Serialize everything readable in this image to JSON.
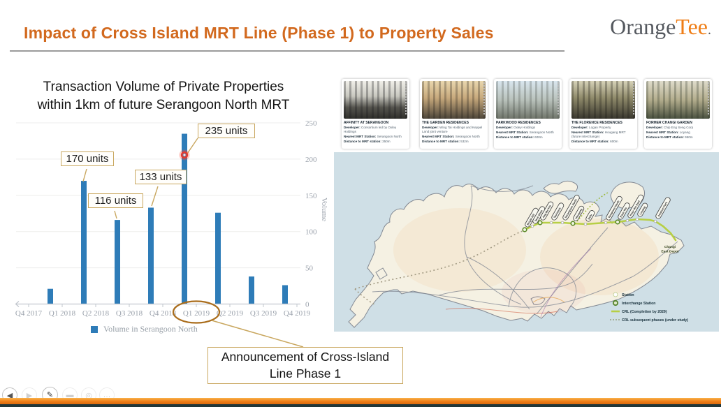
{
  "slide": {
    "title": "Impact of Cross Island MRT Line (Phase 1) to Property Sales",
    "logo_part1": "Orange",
    "logo_part2": "Tee",
    "logo_suffix": "."
  },
  "colors": {
    "title_orange": "#d2691e",
    "bar_blue": "#2e7cb8",
    "callout_border": "#c9a75f",
    "crl_green": "#b7cf45",
    "highlight_red": "#e8392c",
    "sea_blue": "#cfdfe6",
    "land_cream": "#f5f1e3",
    "bottom_bar_orange": "#ee7d17",
    "bottom_bar_dark": "#203639"
  },
  "chart": {
    "title_line1": "Transaction Volume of Private Properties",
    "title_line2": "within 1km of future Serangoon North MRT",
    "ylabel": "Volume",
    "legend_label": "Volume in Serangoon North"
  },
  "chart_data": {
    "type": "bar",
    "title": "Transaction Volume of Private Properties within 1km of future Serangoon North MRT",
    "x_tick_labels": [
      "Q4 2017",
      "Q1 2018",
      "Q2 2018",
      "Q3 2018",
      "Q4 2018",
      "Q1 2019",
      "Q2 2019",
      "Q3 2019",
      "Q4 2019"
    ],
    "note": "8 thin bars are plotted between consecutive quarter tick labels",
    "values": [
      21,
      170,
      116,
      133,
      235,
      126,
      38,
      26
    ],
    "labeled_points": {
      "170 units": 170,
      "116 units": 116,
      "133 units": 133,
      "235 units": 235
    },
    "y_ticks": [
      0,
      50,
      100,
      150,
      200,
      250
    ],
    "ylim": [
      0,
      250
    ],
    "ylabel": "Volume",
    "legend": [
      "Volume in Serangoon North"
    ],
    "legend_position": "bottom",
    "highlight": {
      "near_label": "Q1 2019",
      "value": 235,
      "marker": "red dot on tallest bar"
    },
    "circled_tick": "Q1 2019"
  },
  "callouts": [
    {
      "text": "170 units"
    },
    {
      "text": "116 units"
    },
    {
      "text": "133 units"
    },
    {
      "text": "235 units"
    }
  ],
  "annotation": {
    "line1": "Announcement of Cross-Island",
    "line2": "Line Phase 1"
  },
  "cards": [
    {
      "name": "AFFINITY AT SERANGOON",
      "developer_label": "Developer:",
      "developer": "Consortium led by Oxley Holdings",
      "mrt_label": "Nearest MRT Station:",
      "mrt": "Serangoon North",
      "distance_label": "Distance to MRT station:",
      "distance": "350m"
    },
    {
      "name": "THE GARDEN RESIDENCES",
      "developer_label": "Developer:",
      "developer": "Wing Tai Holdings and Keppel Land joint venture",
      "mrt_label": "Nearest MRT Station:",
      "mrt": "Serangoon North",
      "distance_label": "Distance to MRT station:",
      "distance": "532m"
    },
    {
      "name": "PARKWOOD RESIDENCES",
      "developer_label": "Developer:",
      "developer": "Oxley Holdings",
      "mrt_label": "Nearest MRT Station:",
      "mrt": "Serangoon North",
      "distance_label": "Distance to MRT station:",
      "distance": "600m"
    },
    {
      "name": "THE FLORENCE RESIDENCES",
      "developer_label": "Developer:",
      "developer": "Logan Property",
      "mrt_label": "Nearest MRT Station:",
      "mrt": "Hougang MRT (future interchange)",
      "distance_label": "Distance to MRT station:",
      "distance": "600m"
    },
    {
      "name": "FORMER CHANGI GARDEN",
      "developer_label": "Developer:",
      "developer": "Chip Eng Seng Corp",
      "mrt_label": "Nearest MRT Station:",
      "mrt": "Loyang",
      "distance_label": "Distance to MRT station:",
      "distance": "950m"
    }
  ],
  "map": {
    "stations": [
      "Bright Hill",
      "Teck Ghee",
      "Ang Mo Kio",
      "Tavistock",
      "Serangoon North",
      "Hougang",
      "Defu",
      "Tampines North",
      "Pasir Ris",
      "Pasir Ris East",
      "Loyang",
      "Aviation Park"
    ],
    "depot_line1": "Changi",
    "depot_line2": "East Depot",
    "legend": [
      {
        "label": "Station"
      },
      {
        "label": "Interchange Station"
      },
      {
        "label": "CRL (Completion by 2029)"
      },
      {
        "label": "CRL subsequent phases (under study)"
      }
    ]
  }
}
